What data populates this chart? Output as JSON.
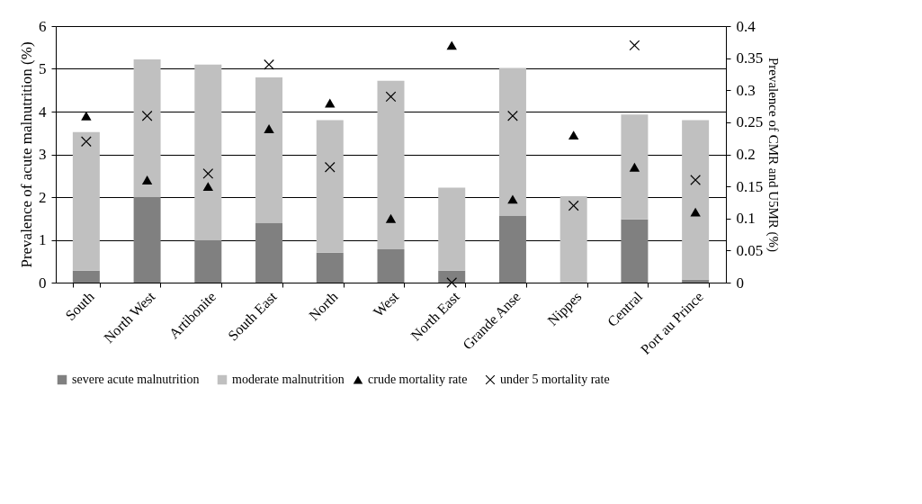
{
  "chart_data": {
    "type": "bar",
    "stacked": true,
    "ylabel": "Prevalence of acute malnutrition (%)",
    "y2label": "Prevalence of CMR and U5MR (%)",
    "categories": [
      "South",
      "North West",
      "Artibonite",
      "South East",
      "North",
      "West",
      "North East",
      "Grande Anse",
      "Nippes",
      "Central",
      "Port au Prince"
    ],
    "series": [
      {
        "name": "severe acute malnutrition",
        "color": "#808080",
        "values": [
          0.28,
          2.0,
          1.0,
          1.4,
          0.7,
          0.78,
          0.28,
          1.57,
          0,
          1.48,
          0.07
        ]
      },
      {
        "name": "moderate malnutrition",
        "color": "#c0c0c0",
        "values": [
          3.24,
          3.22,
          4.1,
          3.4,
          3.1,
          3.94,
          1.94,
          3.45,
          2.02,
          2.45,
          3.73
        ]
      },
      {
        "name": "crude mortality rate",
        "type": "scatter",
        "axis": "y2",
        "marker": "triangle",
        "color": "#000000",
        "values": [
          0.26,
          0.16,
          0.15,
          0.24,
          0.28,
          0.1,
          0.37,
          0.13,
          0.23,
          0.18,
          0.11
        ]
      },
      {
        "name": "under 5 mortality rate",
        "type": "scatter",
        "axis": "y2",
        "marker": "cross",
        "color": "#000000",
        "values": [
          0.22,
          0.26,
          0.17,
          0.34,
          0.18,
          0.29,
          0.0,
          0.26,
          0.12,
          0.37,
          0.16
        ]
      }
    ],
    "ylim": [
      0,
      6
    ],
    "yticks": [
      0,
      1,
      2,
      3,
      4,
      5,
      6
    ],
    "y2lim": [
      0,
      0.4
    ],
    "y2ticks": [
      0,
      0.05,
      0.1,
      0.15,
      0.2,
      0.25,
      0.3,
      0.35,
      0.4
    ],
    "grid": "y",
    "legend": "bottom"
  }
}
